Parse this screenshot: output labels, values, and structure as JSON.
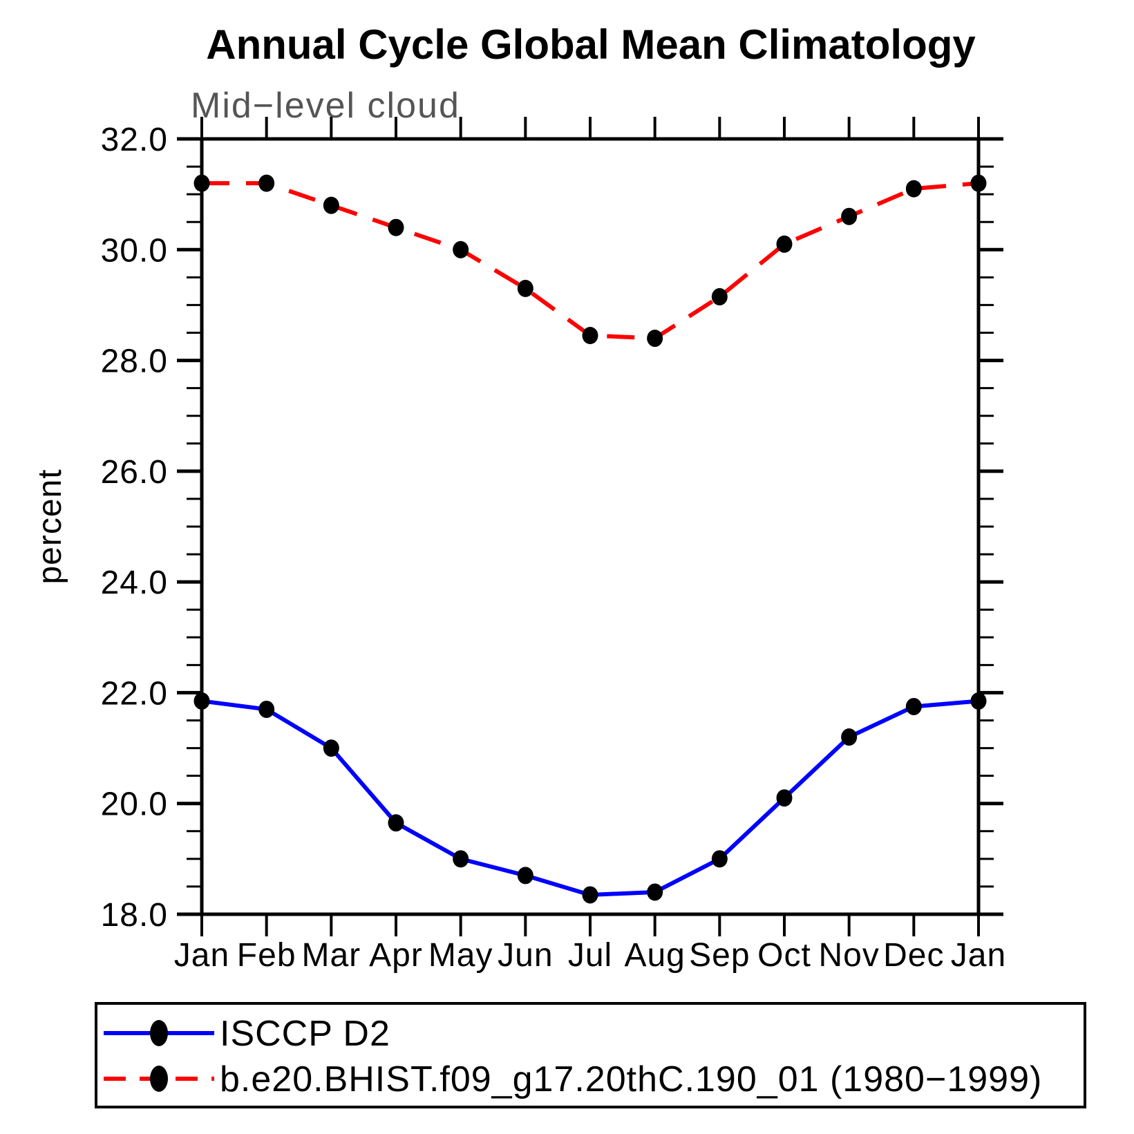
{
  "title": "Annual Cycle Global Mean Climatology",
  "subtitle": "Mid−level cloud",
  "ylabel": "percent",
  "chart_data": {
    "type": "line",
    "x_categories": [
      "Jan",
      "Feb",
      "Mar",
      "Apr",
      "May",
      "Jun",
      "Jul",
      "Aug",
      "Sep",
      "Oct",
      "Nov",
      "Dec",
      "Jan"
    ],
    "ylim": [
      18.0,
      32.0
    ],
    "ytick_major_interval": 2.0,
    "ytick_minor_interval": 0.5,
    "ytick_labels": [
      "18.0",
      "20.0",
      "22.0",
      "24.0",
      "26.0",
      "28.0",
      "30.0",
      "32.0"
    ],
    "xlabel": "",
    "ylabel": "percent",
    "grid": false,
    "legend_position": "bottom-left-box",
    "frame_color": "#000000",
    "series": [
      {
        "name": "ISCCP D2",
        "color": "#0000ff",
        "line_style": "solid",
        "marker": "filled-circle",
        "marker_color": "#000000",
        "values": [
          21.85,
          21.7,
          21.0,
          19.65,
          19.0,
          18.7,
          18.35,
          18.4,
          19.0,
          20.1,
          21.2,
          21.75,
          21.85
        ]
      },
      {
        "name": "b.e20.BHIST.f09_g17.20thC.190_01 (1980−1999)",
        "color": "#ff0000",
        "line_style": "dashed",
        "marker": "filled-circle",
        "marker_color": "#000000",
        "values": [
          31.2,
          31.2,
          30.8,
          30.4,
          30.0,
          29.3,
          28.45,
          28.4,
          29.15,
          30.1,
          30.6,
          31.1,
          31.2
        ]
      }
    ]
  }
}
